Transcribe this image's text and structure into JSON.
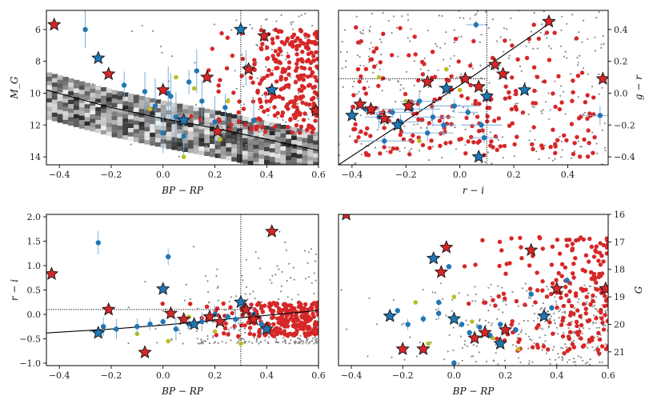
{
  "colors": {
    "background_points": "#8a8a8a",
    "red": "#d62728",
    "blue": "#1f77b4",
    "olive": "#bcbd22",
    "star_fill": "#d62728",
    "star_edge": "#111111"
  },
  "chart_data": [
    {
      "type": "scatter",
      "name": "panel-cmd-abs",
      "xlabel": "BP − RP",
      "ylabel": "M_G",
      "xlim": [
        -0.45,
        0.6
      ],
      "ylim": [
        14.5,
        4.8
      ],
      "y_inverted": true,
      "xticks": [
        -0.4,
        -0.2,
        0.0,
        0.2,
        0.4,
        0.6
      ],
      "yticks": [
        6,
        8,
        10,
        12,
        14
      ],
      "xtick_labels": [
        "−0.4",
        "−0.2",
        "0.0",
        "0.2",
        "0.4",
        "0.6"
      ],
      "ytick_labels": [
        "6",
        "8",
        "10",
        "12",
        "14"
      ],
      "yaxis_side": "left",
      "vline": 0.3,
      "curve": [
        [
          -0.45,
          9.8
        ],
        [
          -0.2,
          10.9
        ],
        [
          0.0,
          11.6
        ],
        [
          0.2,
          12.2
        ],
        [
          0.4,
          12.9
        ],
        [
          0.6,
          13.6
        ]
      ],
      "density_band": true,
      "stars": [
        [
          -0.42,
          5.7
        ],
        [
          -0.25,
          7.8
        ],
        [
          -0.21,
          8.8
        ],
        [
          0.0,
          9.8
        ],
        [
          0.08,
          11.7
        ],
        [
          0.17,
          9.0
        ],
        [
          0.21,
          12.4
        ],
        [
          0.3,
          6.0
        ],
        [
          0.33,
          8.5
        ],
        [
          0.39,
          6.4
        ],
        [
          0.42,
          9.8
        ],
        [
          0.59,
          11.1
        ]
      ],
      "blue": [
        [
          -0.3,
          6.0
        ],
        [
          -0.15,
          9.5
        ],
        [
          -0.07,
          9.9
        ],
        [
          -0.03,
          10.8
        ],
        [
          0.02,
          10.0
        ],
        [
          0.05,
          11.5
        ],
        [
          0.1,
          9.3
        ],
        [
          0.13,
          8.6
        ],
        [
          0.15,
          10.5
        ],
        [
          0.2,
          11.8
        ],
        [
          0.24,
          10.9
        ],
        [
          0.32,
          8.4
        ],
        [
          0.35,
          11.7
        ],
        [
          0.0,
          12.5
        ],
        [
          0.08,
          12.7
        ],
        [
          0.03,
          10.2
        ]
      ],
      "olive": [
        [
          0.05,
          9.0
        ],
        [
          0.12,
          9.7
        ],
        [
          0.25,
          10.5
        ],
        [
          0.08,
          14.0
        ],
        [
          0.22,
          12.9
        ],
        [
          -0.05,
          11.0
        ]
      ],
      "red_count": 260,
      "gray_count": 160
    },
    {
      "type": "scatter",
      "name": "panel-color-color",
      "xlabel": "r − i",
      "ylabel": "g − r",
      "xlim": [
        -0.45,
        0.55
      ],
      "ylim": [
        -0.45,
        0.52
      ],
      "y_inverted": false,
      "xticks": [
        -0.4,
        -0.2,
        0.0,
        0.2,
        0.4
      ],
      "yticks": [
        -0.4,
        -0.2,
        0.0,
        0.2,
        0.4
      ],
      "xtick_labels": [
        "−0.4",
        "−0.2",
        "0.0",
        "0.2",
        "0.4"
      ],
      "ytick_labels": [
        "−0.4",
        "−0.2",
        "0.0",
        "0.2",
        "0.4"
      ],
      "yaxis_side": "right",
      "vline": 0.1,
      "hline": 0.09,
      "curve": [
        [
          -0.45,
          -0.45
        ],
        [
          0.0,
          0.05
        ],
        [
          0.3,
          0.4
        ],
        [
          0.33,
          0.44
        ]
      ],
      "density_band": false,
      "stars": [
        [
          -0.37,
          -0.07
        ],
        [
          -0.4,
          -0.14
        ],
        [
          -0.33,
          -0.1
        ],
        [
          -0.28,
          -0.16
        ],
        [
          -0.23,
          -0.2
        ],
        [
          -0.19,
          -0.08
        ],
        [
          -0.12,
          0.07
        ],
        [
          -0.05,
          0.03
        ],
        [
          0.02,
          0.09
        ],
        [
          0.07,
          0.04
        ],
        [
          0.1,
          -0.02
        ],
        [
          0.13,
          0.18
        ],
        [
          0.16,
          0.12
        ],
        [
          0.24,
          0.02
        ],
        [
          0.33,
          0.45
        ],
        [
          0.53,
          0.09
        ],
        [
          0.07,
          -0.4
        ]
      ],
      "blue": [
        [
          -0.35,
          -0.1
        ],
        [
          -0.3,
          -0.15
        ],
        [
          -0.25,
          -0.12
        ],
        [
          -0.22,
          -0.18
        ],
        [
          -0.18,
          -0.1
        ],
        [
          -0.15,
          -0.05
        ],
        [
          -0.1,
          -0.15
        ],
        [
          -0.06,
          -0.2
        ],
        [
          -0.02,
          -0.08
        ],
        [
          0.03,
          -0.12
        ],
        [
          0.06,
          0.43
        ],
        [
          0.08,
          -0.2
        ],
        [
          0.09,
          -0.28
        ],
        [
          0.52,
          -0.14
        ],
        [
          -0.28,
          -0.3
        ],
        [
          -0.12,
          -0.25
        ]
      ],
      "olive": [
        [
          -0.3,
          0.1
        ],
        [
          -0.2,
          -0.05
        ],
        [
          -0.05,
          0.15
        ],
        [
          0.0,
          0.02
        ],
        [
          -0.15,
          -0.3
        ]
      ],
      "red_count": 220,
      "gray_count": 300
    },
    {
      "type": "scatter",
      "name": "panel-ri-bprp",
      "xlabel": "BP − RP",
      "ylabel": "r − i",
      "xlim": [
        -0.45,
        0.6
      ],
      "ylim": [
        -1.05,
        2.05
      ],
      "y_inverted": false,
      "xticks": [
        -0.4,
        -0.2,
        0.0,
        0.2,
        0.4,
        0.6
      ],
      "yticks": [
        -1.0,
        -0.5,
        0.0,
        0.5,
        1.0,
        1.5,
        2.0
      ],
      "xtick_labels": [
        "−0.4",
        "−0.2",
        "0.0",
        "0.2",
        "0.4",
        "0.6"
      ],
      "ytick_labels": [
        "−1.0",
        "−0.5",
        "0.0",
        "0.5",
        "1.0",
        "1.5",
        "2.0"
      ],
      "yaxis_side": "left",
      "vline": 0.3,
      "hline": 0.1,
      "curve": [
        [
          -0.45,
          -0.38
        ],
        [
          -0.2,
          -0.3
        ],
        [
          0.0,
          -0.22
        ],
        [
          0.2,
          -0.12
        ],
        [
          0.4,
          -0.02
        ],
        [
          0.6,
          0.08
        ]
      ],
      "density_band": false,
      "stars": [
        [
          -0.43,
          0.83
        ],
        [
          -0.25,
          -0.38
        ],
        [
          -0.21,
          0.1
        ],
        [
          -0.07,
          -0.78
        ],
        [
          0.0,
          0.52
        ],
        [
          0.03,
          0.02
        ],
        [
          0.08,
          -0.1
        ],
        [
          0.12,
          -0.2
        ],
        [
          0.18,
          -0.05
        ],
        [
          0.22,
          -0.15
        ],
        [
          0.3,
          0.25
        ],
        [
          0.32,
          0.1
        ],
        [
          0.35,
          -0.1
        ],
        [
          0.4,
          -0.3
        ],
        [
          0.42,
          1.7
        ]
      ],
      "blue": [
        [
          -0.25,
          1.47
        ],
        [
          -0.23,
          -0.25
        ],
        [
          -0.18,
          -0.3
        ],
        [
          -0.1,
          -0.25
        ],
        [
          -0.05,
          -0.2
        ],
        [
          0.0,
          -0.15
        ],
        [
          0.02,
          1.18
        ],
        [
          0.05,
          -0.3
        ],
        [
          0.1,
          -0.2
        ],
        [
          0.15,
          -0.15
        ],
        [
          0.2,
          0.0
        ],
        [
          0.25,
          -0.05
        ],
        [
          0.28,
          -0.1
        ],
        [
          0.35,
          0.0
        ],
        [
          0.38,
          -0.2
        ]
      ],
      "olive": [
        [
          -0.1,
          -0.4
        ],
        [
          0.02,
          -0.55
        ],
        [
          0.1,
          -0.05
        ],
        [
          0.2,
          -0.35
        ],
        [
          0.3,
          -0.6
        ]
      ],
      "red_count": 230,
      "gray_count": 280
    },
    {
      "type": "scatter",
      "name": "panel-g-bprp",
      "xlabel": "BP − RP",
      "ylabel": "G",
      "xlim": [
        -0.45,
        0.6
      ],
      "ylim": [
        21.5,
        16.0
      ],
      "y_inverted": true,
      "xticks": [
        -0.4,
        -0.2,
        0.0,
        0.2,
        0.4,
        0.6
      ],
      "yticks": [
        16,
        17,
        18,
        19,
        20,
        21
      ],
      "xtick_labels": [
        "−0.4",
        "−0.2",
        "0.0",
        "0.2",
        "0.4",
        "0.6"
      ],
      "ytick_labels": [
        "16",
        "17",
        "18",
        "19",
        "20",
        "21"
      ],
      "yaxis_side": "right",
      "density_band": false,
      "stars": [
        [
          -0.42,
          16.0
        ],
        [
          -0.25,
          19.7
        ],
        [
          -0.2,
          20.9
        ],
        [
          -0.12,
          20.9
        ],
        [
          -0.08,
          17.6
        ],
        [
          -0.05,
          18.1
        ],
        [
          -0.03,
          17.2
        ],
        [
          0.0,
          19.8
        ],
        [
          0.08,
          20.5
        ],
        [
          0.12,
          20.3
        ],
        [
          0.18,
          20.7
        ],
        [
          0.2,
          20.2
        ],
        [
          0.3,
          17.3
        ],
        [
          0.35,
          19.7
        ],
        [
          0.4,
          18.7
        ],
        [
          0.59,
          18.7
        ]
      ],
      "blue": [
        [
          -0.22,
          19.5
        ],
        [
          -0.18,
          20.0
        ],
        [
          -0.12,
          19.8
        ],
        [
          -0.06,
          19.6
        ],
        [
          -0.02,
          17.9
        ],
        [
          0.0,
          21.4
        ],
        [
          0.03,
          20.0
        ],
        [
          0.06,
          20.3
        ],
        [
          0.1,
          20.1
        ],
        [
          0.14,
          20.4
        ],
        [
          0.18,
          20.0
        ],
        [
          0.24,
          20.2
        ],
        [
          0.3,
          18.9
        ],
        [
          0.38,
          19.4
        ],
        [
          0.44,
          18.4
        ],
        [
          -0.06,
          19.2
        ]
      ],
      "olive": [
        [
          -0.15,
          19.2
        ],
        [
          0.0,
          19.0
        ],
        [
          0.07,
          19.9
        ],
        [
          0.15,
          20.5
        ],
        [
          0.25,
          20.9
        ],
        [
          -0.1,
          20.7
        ]
      ],
      "red_count": 200,
      "gray_count": 320
    }
  ]
}
